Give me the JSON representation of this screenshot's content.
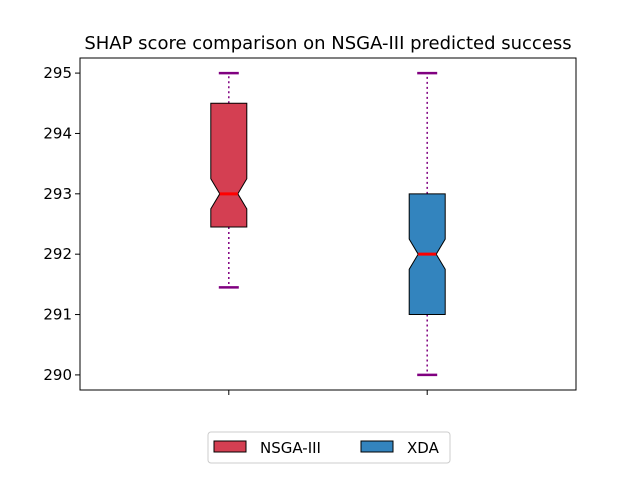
{
  "chart_data": {
    "type": "boxplot",
    "title": "SHAP score comparison on NSGA-III predicted success",
    "xlabel": "",
    "ylabel": "",
    "ylim": [
      289.75,
      295.25
    ],
    "yticks": [
      290,
      291,
      292,
      293,
      294,
      295
    ],
    "ytick_labels": [
      "290",
      "291",
      "292",
      "293",
      "294",
      "295"
    ],
    "notched": true,
    "grid": false,
    "legend_position": "bottom-center, below axes",
    "series": [
      {
        "name": "NSGA-III",
        "color": "#d43f52",
        "min": 291.45,
        "q1": 292.45,
        "median": 293.0,
        "q3": 294.5,
        "max": 295.0,
        "notch_low": 292.75,
        "notch_high": 293.25
      },
      {
        "name": "XDA",
        "color": "#3384be",
        "min": 290.0,
        "q1": 291.0,
        "median": 292.0,
        "q3": 293.0,
        "max": 295.0,
        "notch_low": 291.75,
        "notch_high": 292.25
      }
    ],
    "median_color": "#ff0000",
    "whisker_color": "#800080"
  }
}
